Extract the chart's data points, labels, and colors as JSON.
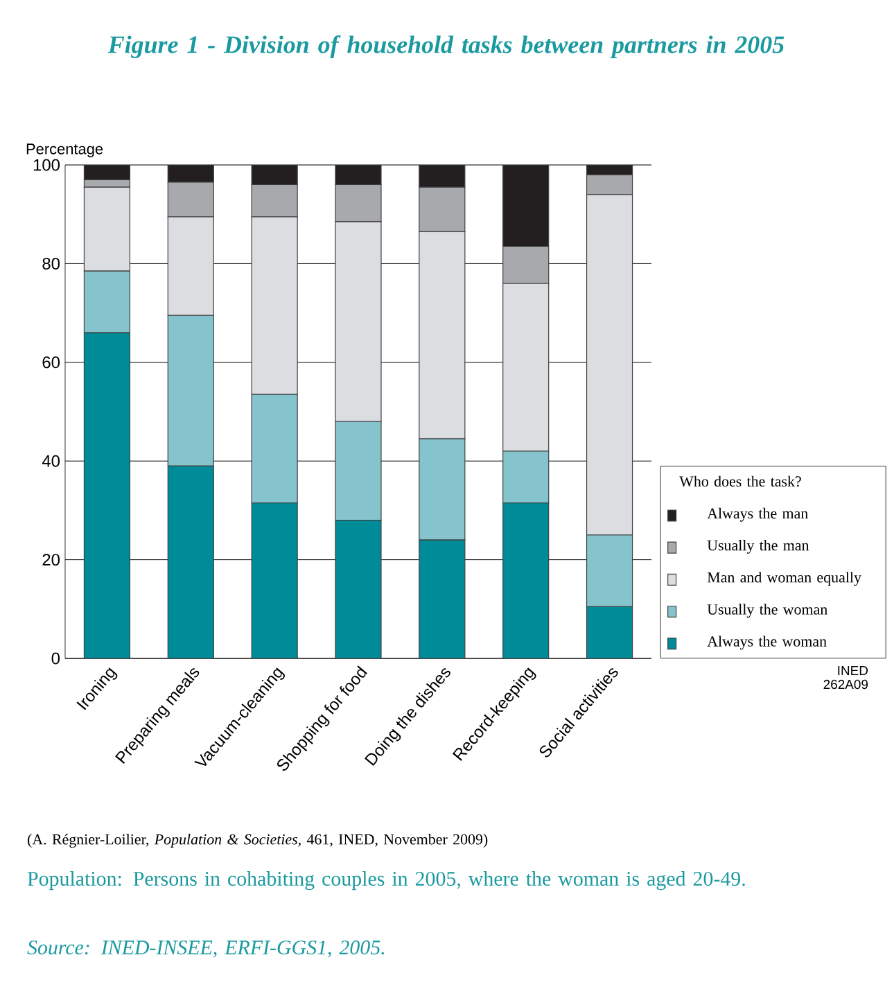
{
  "chart_data": {
    "type": "bar",
    "stacked": true,
    "title": "Figure 1 - Division of household tasks between partners in 2005",
    "ylabel": "Percentage",
    "legend_title": "Who does the task?",
    "legend": "right",
    "grid": "y",
    "categories": [
      "Ironing",
      "Preparing meals",
      "Vacuum-cleaning",
      "Shopping for food",
      "Doing the dishes",
      "Record-keeping",
      "Social activities"
    ],
    "ylim": [
      0,
      100
    ],
    "yticks": [
      0,
      20,
      40,
      60,
      80,
      100
    ],
    "series": [
      {
        "name": "Always the woman",
        "color": "#008b98",
        "values": [
          66,
          39,
          31.5,
          28,
          24,
          31.5,
          10.5
        ]
      },
      {
        "name": "Usually the woman",
        "color": "#86c4cd",
        "values": [
          12.5,
          30.5,
          22,
          20,
          20.5,
          10.5,
          14.5
        ]
      },
      {
        "name": "Man and woman equally",
        "color": "#dcdde0",
        "values": [
          17,
          20,
          36,
          40.5,
          42,
          34,
          69
        ]
      },
      {
        "name": "Usually the man",
        "color": "#a7a9ac",
        "values": [
          1.5,
          7,
          6.5,
          7.5,
          9,
          7.5,
          4
        ]
      },
      {
        "name": "Always the man",
        "color": "#231f20",
        "values": [
          3,
          3.5,
          4,
          4,
          4.5,
          16.5,
          2
        ]
      }
    ],
    "annotations": [
      "INED 262A09",
      "(A. Régnier-Loilier, *Population & Societies*, 461, INED, November 2009)",
      "Population: Persons in cohabiting couples in 2005, where the woman is aged 20-49.",
      "Source: INED-INSEE, ERFI-GGS1, 2005."
    ]
  }
}
